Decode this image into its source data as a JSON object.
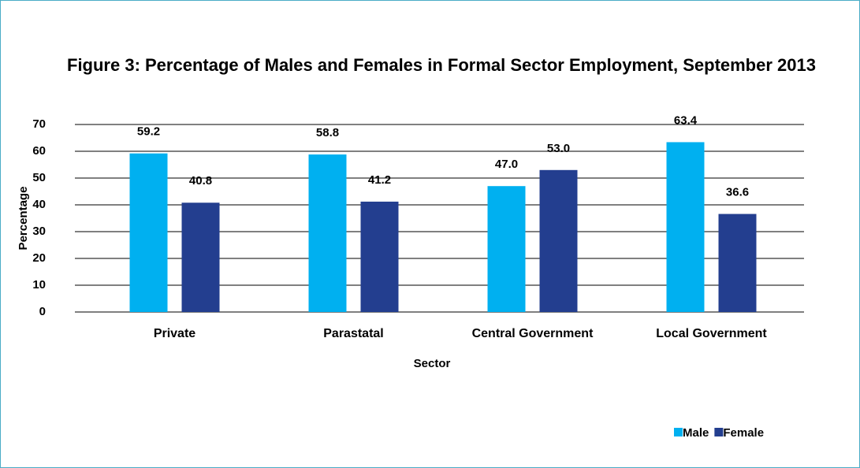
{
  "chart_data": {
    "type": "bar",
    "title": "Figure 3: Percentage of Males and Females in Formal Sector Employment, September 2013",
    "xlabel": "Sector",
    "ylabel": "Percentage",
    "categories": [
      "Private",
      "Parastatal",
      "Central Government",
      "Local Government"
    ],
    "series": [
      {
        "name": "Male",
        "color": "#00b0f0",
        "values": [
          59.2,
          58.8,
          47,
          63.4
        ],
        "value_labels": [
          "59.2",
          "58.8",
          "47.0",
          "63.4"
        ]
      },
      {
        "name": "Female",
        "color": "#233e8f",
        "values": [
          40.8,
          41.2,
          53,
          36.6
        ],
        "value_labels": [
          "40.8",
          "41.2",
          "53.0",
          "36.6"
        ]
      }
    ],
    "ylim": [
      0,
      70
    ],
    "yticks": [
      0,
      10,
      20,
      30,
      40,
      50,
      60,
      70
    ],
    "grid": true,
    "legend": "bottom-right"
  }
}
